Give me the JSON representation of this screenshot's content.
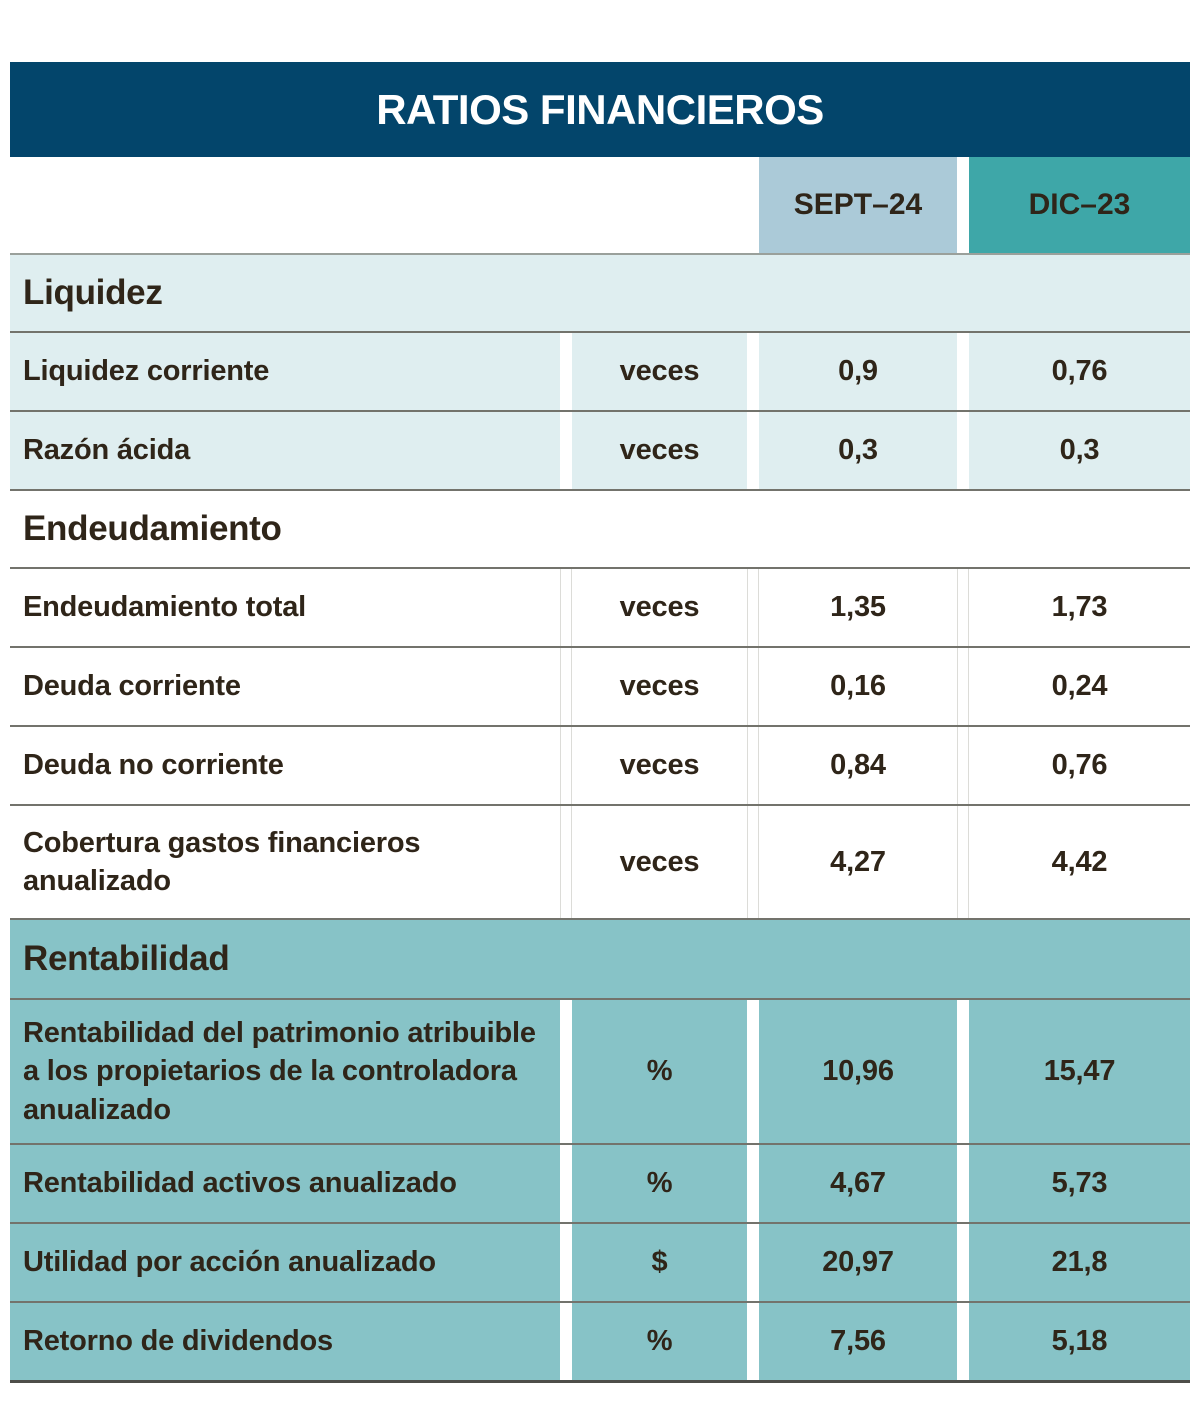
{
  "colors": {
    "navy": "#03456B",
    "septHeader": "#ABCAD8",
    "dicHeader": "#3EA7A8",
    "liquidezBg": "#DFEEF0",
    "rentabilidadBg": "#87C3C7",
    "textDark": "#2F2519",
    "dividerGray": "#73736C"
  },
  "chart_data": {
    "type": "table",
    "title": "RATIOS FINANCIEROS",
    "columns": {
      "sept24": "SEPT–24",
      "dic23": "DIC–23"
    },
    "sections": [
      {
        "name": "Liquidez",
        "rows": [
          {
            "label": "Liquidez corriente",
            "unit": "veces",
            "sept24": "0,9",
            "dic23": "0,76"
          },
          {
            "label": "Razón ácida",
            "unit": "veces",
            "sept24": "0,3",
            "dic23": "0,3"
          }
        ]
      },
      {
        "name": "Endeudamiento",
        "rows": [
          {
            "label": "Endeudamiento total",
            "unit": "veces",
            "sept24": "1,35",
            "dic23": "1,73"
          },
          {
            "label": "Deuda corriente",
            "unit": "veces",
            "sept24": "0,16",
            "dic23": "0,24"
          },
          {
            "label": "Deuda no corriente",
            "unit": "veces",
            "sept24": "0,84",
            "dic23": "0,76"
          },
          {
            "label": "Cobertura gastos financieros anualizado",
            "unit": "veces",
            "sept24": "4,27",
            "dic23": "4,42"
          }
        ]
      },
      {
        "name": "Rentabilidad",
        "rows": [
          {
            "label": "Rentabilidad del patrimonio atribuible a los propietarios de la controladora anualizado",
            "unit": "%",
            "sept24": "10,96",
            "dic23": "15,47"
          },
          {
            "label": "Rentabilidad activos anualizado",
            "unit": "%",
            "sept24": "4,67",
            "dic23": "5,73"
          },
          {
            "label": "Utilidad por acción anualizado",
            "unit": "$",
            "sept24": "20,97",
            "dic23": "21,8"
          },
          {
            "label": "Retorno de dividendos",
            "unit": "%",
            "sept24": "7,56",
            "dic23": "5,18"
          }
        ]
      }
    ]
  }
}
